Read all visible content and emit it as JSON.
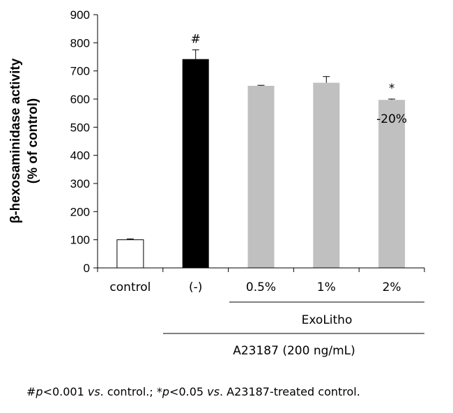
{
  "chart_data": {
    "type": "bar",
    "categories": [
      "control",
      "(-)",
      "0.5%",
      "1%",
      "2%"
    ],
    "values": [
      100,
      742,
      647,
      658,
      597
    ],
    "errors": [
      3,
      33,
      2,
      22,
      3
    ],
    "colors": [
      "#ffffff",
      "#000000",
      "#c0c0c0",
      "#c0c0c0",
      "#c0c0c0"
    ],
    "bar_marks": [
      "",
      "#",
      "",
      "",
      "*"
    ],
    "bar_notes": [
      "",
      "",
      "",
      "",
      "-20%"
    ],
    "ylabel_line1": "β-hexosaminidase activity",
    "ylabel_line2": "(% of control)",
    "ylim": [
      0,
      900
    ],
    "yticks": [
      0,
      100,
      200,
      300,
      400,
      500,
      600,
      700,
      800,
      900
    ],
    "group_labels": {
      "exolitho": "ExoLitho",
      "a23187": "A23187 (200 ng/mL)"
    },
    "grid": false
  },
  "footnote": {
    "part1": "#",
    "p1": "p",
    "part2": "<0.001 ",
    "vs1": "vs",
    "part3": ". control.; *",
    "p2": "p",
    "part4": "<0.05 ",
    "vs2": "vs",
    "part5": ". A23187-treated control."
  }
}
